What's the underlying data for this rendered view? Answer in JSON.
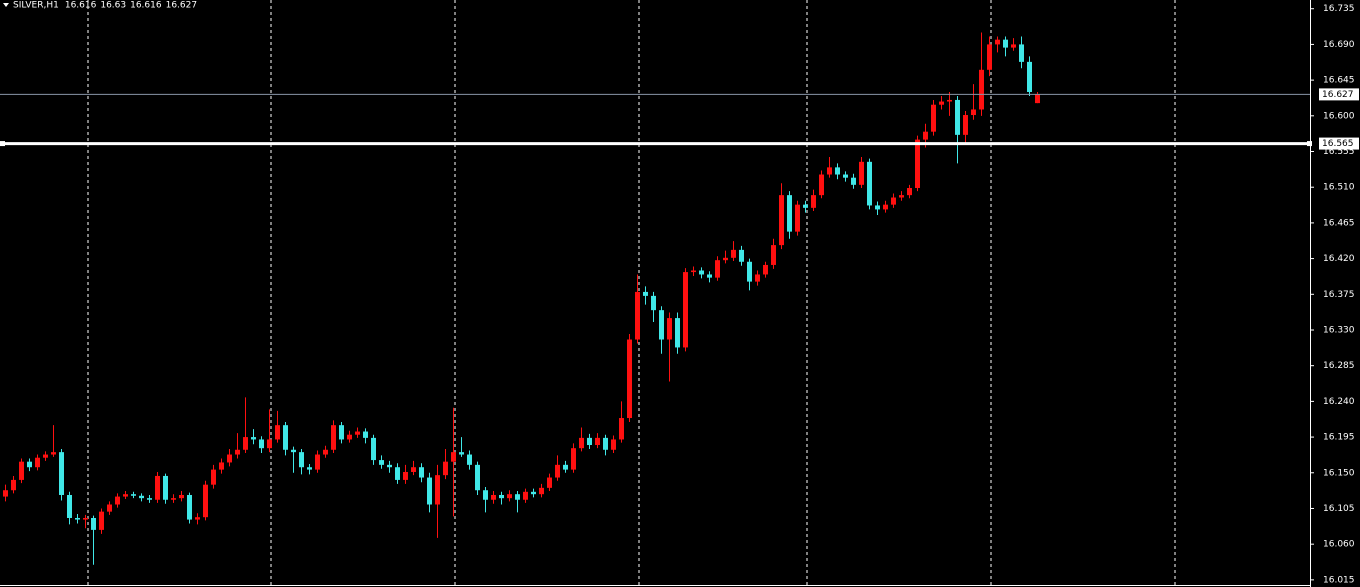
{
  "chart_data": {
    "type": "candlestick",
    "title": "SILVER,H1",
    "up_color": "#ff1010",
    "down_color": "#40e8e8",
    "ylim": [
      16.006,
      16.746
    ],
    "yticks": [
      {
        "value": 16.735,
        "label": "16.735"
      },
      {
        "value": 16.69,
        "label": "16.690"
      },
      {
        "value": 16.645,
        "label": "16.645"
      },
      {
        "value": 16.6,
        "label": "16.600"
      },
      {
        "value": 16.555,
        "label": "16.555"
      },
      {
        "value": 16.51,
        "label": "16.510"
      },
      {
        "value": 16.465,
        "label": "16.465"
      },
      {
        "value": 16.42,
        "label": "16.420"
      },
      {
        "value": 16.375,
        "label": "16.375"
      },
      {
        "value": 16.33,
        "label": "16.330"
      },
      {
        "value": 16.285,
        "label": "16.285"
      },
      {
        "value": 16.24,
        "label": "16.240"
      },
      {
        "value": 16.195,
        "label": "16.195"
      },
      {
        "value": 16.15,
        "label": "16.150"
      },
      {
        "value": 16.105,
        "label": "16.105"
      },
      {
        "value": 16.06,
        "label": "16.060"
      },
      {
        "value": 16.015,
        "label": "16.015"
      }
    ],
    "price_lines": [
      {
        "value": 16.627,
        "color": "#8a96a8"
      },
      {
        "value": 16.565,
        "color": "#ffffff"
      }
    ],
    "candles": [
      [
        16.12,
        16.135,
        16.114,
        16.128
      ],
      [
        16.128,
        16.146,
        16.124,
        16.141
      ],
      [
        16.141,
        16.168,
        16.137,
        16.164
      ],
      [
        16.164,
        16.168,
        16.152,
        16.157
      ],
      [
        16.157,
        16.173,
        16.153,
        16.169
      ],
      [
        16.169,
        16.177,
        16.165,
        16.173
      ],
      [
        16.173,
        16.21,
        16.17,
        16.176
      ],
      [
        16.176,
        16.18,
        16.115,
        16.122
      ],
      [
        16.122,
        16.126,
        16.085,
        16.093
      ],
      [
        16.093,
        16.098,
        16.086,
        16.091
      ],
      [
        16.091,
        16.097,
        16.08,
        16.093
      ],
      [
        16.093,
        16.096,
        16.034,
        16.078
      ],
      [
        16.078,
        16.105,
        16.073,
        16.101
      ],
      [
        16.101,
        16.114,
        16.097,
        16.11
      ],
      [
        16.11,
        16.124,
        16.106,
        16.12
      ],
      [
        16.12,
        16.127,
        16.117,
        16.123
      ],
      [
        16.123,
        16.126,
        16.118,
        16.121
      ],
      [
        16.121,
        16.124,
        16.114,
        16.118
      ],
      [
        16.118,
        16.122,
        16.112,
        16.116
      ],
      [
        16.116,
        16.151,
        16.112,
        16.146
      ],
      [
        16.146,
        16.149,
        16.111,
        16.116
      ],
      [
        16.116,
        16.123,
        16.112,
        16.118
      ],
      [
        16.118,
        16.127,
        16.114,
        16.122
      ],
      [
        16.122,
        16.125,
        16.086,
        16.091
      ],
      [
        16.091,
        16.099,
        16.085,
        16.094
      ],
      [
        16.094,
        16.14,
        16.09,
        16.135
      ],
      [
        16.135,
        16.16,
        16.13,
        16.154
      ],
      [
        16.154,
        16.168,
        16.149,
        16.163
      ],
      [
        16.163,
        16.18,
        16.158,
        16.173
      ],
      [
        16.173,
        16.2,
        16.168,
        16.179
      ],
      [
        16.179,
        16.245,
        16.175,
        16.195
      ],
      [
        16.195,
        16.205,
        16.186,
        16.192
      ],
      [
        16.192,
        16.196,
        16.175,
        16.181
      ],
      [
        16.181,
        16.23,
        16.176,
        16.192
      ],
      [
        16.192,
        16.228,
        16.188,
        16.21
      ],
      [
        16.21,
        16.214,
        16.172,
        16.179
      ],
      [
        16.179,
        16.183,
        16.15,
        16.176
      ],
      [
        16.176,
        16.18,
        16.148,
        16.157
      ],
      [
        16.157,
        16.161,
        16.148,
        16.154
      ],
      [
        16.154,
        16.178,
        16.15,
        16.173
      ],
      [
        16.173,
        16.184,
        16.169,
        16.179
      ],
      [
        16.179,
        16.216,
        16.175,
        16.21
      ],
      [
        16.21,
        16.214,
        16.187,
        16.192
      ],
      [
        16.192,
        16.203,
        16.188,
        16.198
      ],
      [
        16.198,
        16.207,
        16.194,
        16.202
      ],
      [
        16.202,
        16.206,
        16.187,
        16.194
      ],
      [
        16.194,
        16.198,
        16.16,
        16.166
      ],
      [
        16.166,
        16.172,
        16.155,
        16.16
      ],
      [
        16.16,
        16.165,
        16.15,
        16.157
      ],
      [
        16.157,
        16.162,
        16.136,
        16.141
      ],
      [
        16.141,
        16.16,
        16.136,
        16.151
      ],
      [
        16.151,
        16.165,
        16.147,
        16.157
      ],
      [
        16.157,
        16.162,
        16.138,
        16.144
      ],
      [
        16.144,
        16.15,
        16.1,
        16.11
      ],
      [
        16.11,
        16.16,
        16.068,
        16.147
      ],
      [
        16.147,
        16.18,
        16.142,
        16.164
      ],
      [
        16.164,
        16.232,
        16.095,
        16.176
      ],
      [
        16.176,
        16.195,
        16.17,
        16.173
      ],
      [
        16.173,
        16.178,
        16.154,
        16.16
      ],
      [
        16.16,
        16.164,
        16.122,
        16.128
      ],
      [
        16.128,
        16.132,
        16.1,
        16.116
      ],
      [
        16.116,
        16.127,
        16.111,
        16.122
      ],
      [
        16.122,
        16.126,
        16.11,
        16.118
      ],
      [
        16.118,
        16.128,
        16.114,
        16.123
      ],
      [
        16.123,
        16.127,
        16.1,
        16.116
      ],
      [
        16.116,
        16.13,
        16.112,
        16.126
      ],
      [
        16.126,
        16.13,
        16.119,
        16.123
      ],
      [
        16.123,
        16.136,
        16.119,
        16.131
      ],
      [
        16.131,
        16.149,
        16.127,
        16.144
      ],
      [
        16.144,
        16.172,
        16.14,
        16.16
      ],
      [
        16.16,
        16.165,
        16.15,
        16.154
      ],
      [
        16.154,
        16.187,
        16.15,
        16.181
      ],
      [
        16.181,
        16.207,
        16.177,
        16.194
      ],
      [
        16.194,
        16.199,
        16.18,
        16.185
      ],
      [
        16.185,
        16.2,
        16.181,
        16.194
      ],
      [
        16.194,
        16.198,
        16.172,
        16.179
      ],
      [
        16.179,
        16.197,
        16.175,
        16.192
      ],
      [
        16.192,
        16.24,
        16.188,
        16.219
      ],
      [
        16.219,
        16.325,
        16.214,
        16.318
      ],
      [
        16.318,
        16.4,
        16.313,
        16.378
      ],
      [
        16.378,
        16.385,
        16.362,
        16.373
      ],
      [
        16.373,
        16.378,
        16.34,
        16.355
      ],
      [
        16.355,
        16.36,
        16.3,
        16.318
      ],
      [
        16.318,
        16.352,
        16.265,
        16.345
      ],
      [
        16.345,
        16.352,
        16.3,
        16.308
      ],
      [
        16.308,
        16.408,
        16.303,
        16.403
      ],
      [
        16.403,
        16.41,
        16.398,
        16.405
      ],
      [
        16.405,
        16.409,
        16.395,
        16.4
      ],
      [
        16.4,
        16.404,
        16.39,
        16.396
      ],
      [
        16.396,
        16.423,
        16.392,
        16.418
      ],
      [
        16.418,
        16.43,
        16.414,
        16.421
      ],
      [
        16.421,
        16.442,
        16.417,
        16.431
      ],
      [
        16.431,
        16.436,
        16.411,
        16.416
      ],
      [
        16.416,
        16.42,
        16.38,
        16.391
      ],
      [
        16.391,
        16.405,
        16.386,
        16.4
      ],
      [
        16.4,
        16.416,
        16.396,
        16.412
      ],
      [
        16.412,
        16.445,
        16.407,
        16.437
      ],
      [
        16.437,
        16.515,
        16.432,
        16.5
      ],
      [
        16.5,
        16.505,
        16.445,
        16.454
      ],
      [
        16.454,
        16.493,
        16.449,
        16.488
      ],
      [
        16.488,
        16.493,
        16.478,
        16.484
      ],
      [
        16.484,
        16.507,
        16.48,
        16.5
      ],
      [
        16.5,
        16.531,
        16.496,
        16.526
      ],
      [
        16.526,
        16.548,
        16.522,
        16.535
      ],
      [
        16.535,
        16.54,
        16.52,
        16.526
      ],
      [
        16.526,
        16.53,
        16.517,
        16.522
      ],
      [
        16.522,
        16.527,
        16.508,
        16.513
      ],
      [
        16.513,
        16.548,
        16.509,
        16.542
      ],
      [
        16.542,
        16.546,
        16.482,
        16.487
      ],
      [
        16.487,
        16.492,
        16.475,
        16.482
      ],
      [
        16.482,
        16.493,
        16.478,
        16.488
      ],
      [
        16.488,
        16.502,
        16.484,
        16.497
      ],
      [
        16.497,
        16.505,
        16.493,
        16.5
      ],
      [
        16.5,
        16.513,
        16.496,
        16.509
      ],
      [
        16.509,
        16.575,
        16.505,
        16.57
      ],
      [
        16.57,
        16.59,
        16.56,
        16.58
      ],
      [
        16.58,
        16.62,
        16.575,
        16.614
      ],
      [
        16.614,
        16.625,
        16.608,
        16.618
      ],
      [
        16.618,
        16.63,
        16.6,
        16.62
      ],
      [
        16.62,
        16.625,
        16.54,
        16.576
      ],
      [
        16.576,
        16.606,
        16.565,
        16.601
      ],
      [
        16.601,
        16.64,
        16.595,
        16.608
      ],
      [
        16.608,
        16.705,
        16.6,
        16.658
      ],
      [
        16.658,
        16.7,
        16.65,
        16.69
      ],
      [
        16.69,
        16.7,
        16.68,
        16.696
      ],
      [
        16.696,
        16.7,
        16.675,
        16.686
      ],
      [
        16.686,
        16.698,
        16.682,
        16.69
      ],
      [
        16.69,
        16.7,
        16.66,
        16.668
      ],
      [
        16.668,
        16.675,
        16.625,
        16.63
      ],
      [
        16.616,
        16.63,
        16.616,
        16.627
      ]
    ]
  }
}
